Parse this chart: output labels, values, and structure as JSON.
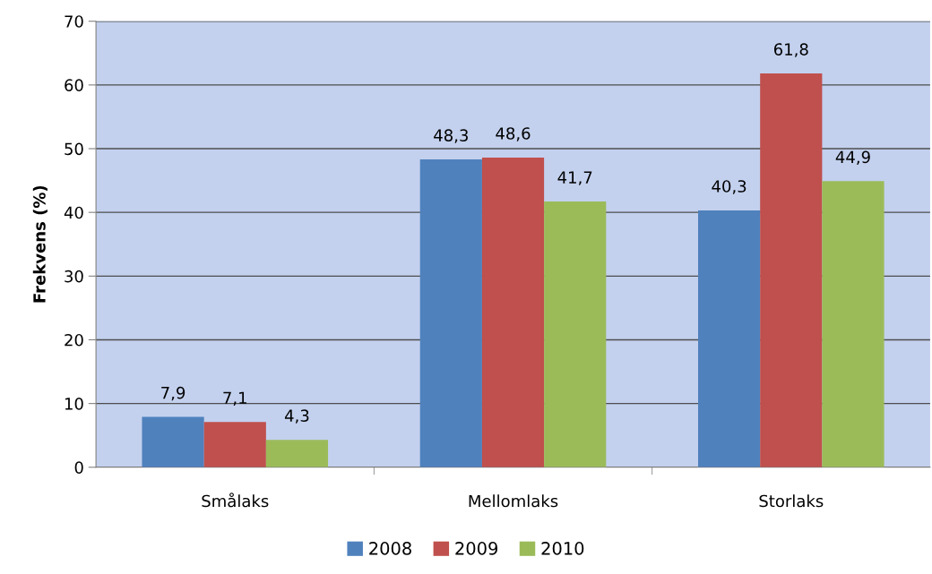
{
  "chart_data": {
    "type": "bar",
    "ylabel": "Frekvens (%)",
    "categories": [
      "Smålaks",
      "Mellomlaks",
      "Storlaks"
    ],
    "series": [
      {
        "name": "2008",
        "color": "#4f81bd",
        "values": [
          7.9,
          48.3,
          40.3
        ],
        "value_labels": [
          "7,9",
          "48,3",
          "40,3"
        ]
      },
      {
        "name": "2009",
        "color": "#c0504d",
        "values": [
          7.1,
          48.6,
          61.8
        ],
        "value_labels": [
          "7,1",
          "48,6",
          "61,8"
        ]
      },
      {
        "name": "2010",
        "color": "#9bbb59",
        "values": [
          4.3,
          41.7,
          44.9
        ],
        "value_labels": [
          "4,3",
          "41,7",
          "44,9"
        ]
      }
    ],
    "ylim": [
      0,
      70
    ],
    "yticks": [
      0,
      10,
      20,
      30,
      40,
      50,
      60,
      70
    ],
    "grid": "y",
    "legend": "bottom"
  }
}
